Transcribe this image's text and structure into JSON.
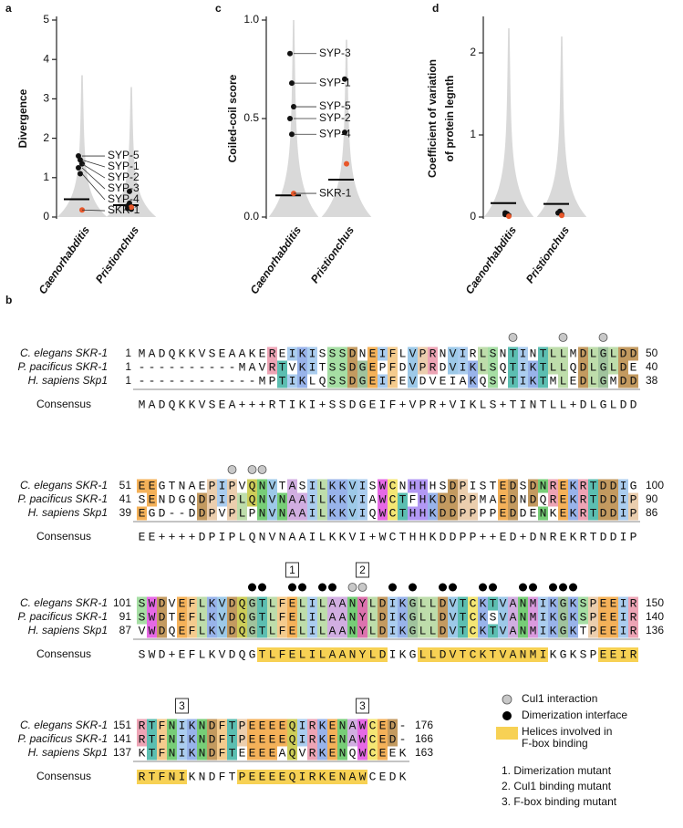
{
  "chart_data": [
    {
      "type": "strip",
      "panel": "a",
      "ylabel": [
        "Divergence"
      ],
      "categories": [
        "Caenorhabditis",
        "Pristionchus"
      ],
      "ylim": [
        0,
        5
      ],
      "yticks": [
        0,
        1,
        2,
        3,
        4,
        5
      ],
      "violin_max": [
        3.6,
        3.3
      ],
      "violin_color": "#cccccc",
      "medians": [
        0.45,
        0.3
      ],
      "series": [
        {
          "name": "SYP-5",
          "color": "#111111",
          "values": [
            1.55,
            0.22
          ]
        },
        {
          "name": "SYP-1",
          "color": "#111111",
          "values": [
            1.45,
            0.65
          ]
        },
        {
          "name": "SYP-2",
          "color": "#111111",
          "values": [
            1.35,
            0.2
          ]
        },
        {
          "name": "SYP-3",
          "color": "#111111",
          "values": [
            1.25,
            0.28
          ]
        },
        {
          "name": "SYP-4",
          "color": "#111111",
          "values": [
            1.1,
            0.35
          ]
        },
        {
          "name": "SKR-1",
          "color": "#e8572a",
          "values": [
            0.18,
            0.25
          ]
        }
      ]
    },
    {
      "type": "strip",
      "panel": "c",
      "ylabel": [
        "Coiled-coil score"
      ],
      "categories": [
        "Caenorhabditis",
        "Pristionchus"
      ],
      "ylim": [
        0,
        1
      ],
      "yticks": [
        {
          "value": 0,
          "label": "0.0"
        },
        {
          "value": 0.5,
          "label": "0.5"
        },
        {
          "value": 1,
          "label": "1.0"
        }
      ],
      "violin_max": [
        1.0,
        0.9
      ],
      "violin_color": "#cccccc",
      "medians": [
        0.11,
        0.19
      ],
      "series": [
        {
          "name": "SYP-3",
          "color": "#111111",
          "values": [
            0.83,
            null
          ]
        },
        {
          "name": "SYP-1",
          "color": "#111111",
          "values": [
            0.68,
            0.7
          ]
        },
        {
          "name": "SYP-5",
          "color": "#111111",
          "values": [
            0.56,
            null
          ]
        },
        {
          "name": "SYP-2",
          "color": "#111111",
          "values": [
            0.5,
            null
          ]
        },
        {
          "name": "SYP-4",
          "color": "#111111",
          "values": [
            0.42,
            0.43
          ]
        },
        {
          "name": "SKR-1",
          "color": "#e8572a",
          "values": [
            0.12,
            0.27
          ]
        }
      ]
    },
    {
      "type": "strip",
      "panel": "d",
      "ylabel": [
        "Coefficient of variation",
        "of protein legnth"
      ],
      "categories": [
        "Caenorhabditis",
        "Pristionchus"
      ],
      "ylim": [
        0,
        2.4
      ],
      "yticks": [
        0,
        1,
        2
      ],
      "violin_max": [
        2.3,
        2.2
      ],
      "violin_color": "#cccccc",
      "medians": [
        0.17,
        0.16
      ],
      "series": [
        {
          "color": "#111111",
          "values": [
            0.03,
            0.05
          ]
        },
        {
          "color": "#111111",
          "values": [
            0.04,
            0.07
          ]
        },
        {
          "color": "#111111",
          "values": [
            0.02,
            0.03
          ]
        },
        {
          "color": "#111111",
          "values": [
            0.05,
            null
          ]
        },
        {
          "color": "#111111",
          "values": [
            0.03,
            null
          ]
        },
        {
          "color": "#e8572a",
          "values": [
            0.01,
            0.02
          ]
        }
      ]
    }
  ],
  "alignment": {
    "panel": "b",
    "consensus_label": "Consensus",
    "blocks": [
      {
        "rows": [
          {
            "name": "C. elegans SKR-1",
            "start": 1,
            "seq": "MADQKKVSEAAKEREIKISSSDNEIFLVPRNVIRLSNTINTLLMDLGLDD",
            "end": 50
          },
          {
            "name": "P. pacificus SKR-1",
            "start": 1,
            "seq": "----------MAVRTVKITSSDGEPFDVPRDVIKLSQTIKTLLQDLGLDE",
            "end": 40
          },
          {
            "name": "H. sapiens Skp1",
            "start": 1,
            "seq": "------------MPTIKLQSSDGEIFEVDVEIAKQSVTIKTMLEDLGMDD",
            "end": 38
          }
        ],
        "consensus": "MADQKKVSEA+++RTIKI+SSDGEIF+VPR+VIKLS+TINTLL+DLGLDD",
        "helices": [],
        "cul1_sites": [
          37,
          42,
          46
        ],
        "dimer_sites": [],
        "boxes": []
      },
      {
        "rows": [
          {
            "name": "C. elegans SKR-1",
            "start": 51,
            "seq": "EEGTNAEPIPVQNVTASILKKVISWCNHHHSDPISTEDSDNREKRTDDIG",
            "end": 100
          },
          {
            "name": "P. pacificus SKR-1",
            "start": 41,
            "seq": "SENDGQDPIPLQNVNAAILKKVIAWCTFHKDDPPMAEDNDQREKRTDDIP",
            "end": 90
          },
          {
            "name": "H. sapiens Skp1",
            "start": 39,
            "seq": "EGD--DDPVPLPNVNAAILKKVIQWCTHHKDDPPPPEDDENKEKRTDDIP",
            "end": 86
          }
        ],
        "consensus": "EE++++DPIPLQNVNAAILKKVI+WCTHHKDDPP++ED+DNREKRTDDIP",
        "helices": [],
        "cul1_sites": [
          9,
          11,
          12
        ],
        "dimer_sites": [],
        "boxes": []
      },
      {
        "rows": [
          {
            "name": "C. elegans SKR-1",
            "start": 101,
            "seq": "SWDVEFLKVDQGTLFELILAANYLDIKGLLDVTCKTVANMIKGKSPEEIR",
            "end": 150
          },
          {
            "name": "P. pacificus SKR-1",
            "start": 91,
            "seq": "SWDTEFLKVDQGTLFELILAANYLDIKGLLDVTCKSVANMIKGKSPEEIR",
            "end": 140
          },
          {
            "name": "H. sapiens Skp1",
            "start": 87,
            "seq": "VWDQEFLKVDQGTLFELILAANYLDIKGLLDVTCKTVANMIKGKTPEEIR",
            "end": 136
          }
        ],
        "consensus": "SWD+EFLKVDQGTLFELILAANYLDIKGLLDVTCKTVANMIKGKSPEEIR",
        "helices": [
          [
            12,
            24
          ],
          [
            28,
            40
          ],
          [
            46,
            49
          ]
        ],
        "cul1_sites": [
          21,
          22
        ],
        "dimer_sites": [
          11,
          12,
          15,
          16,
          18,
          19,
          25,
          27,
          30,
          31,
          34,
          35,
          38,
          39,
          41,
          42,
          43
        ],
        "boxes": [
          {
            "label": "1",
            "col": 15
          },
          {
            "label": "2",
            "col": 22
          }
        ]
      },
      {
        "rows": [
          {
            "name": "C. elegans SKR-1",
            "start": 151,
            "seq": "RTFNIKNDFTPEEEEQIRKENAWCED-",
            "end": 176
          },
          {
            "name": "P. pacificus SKR-1",
            "start": 141,
            "seq": "RTFNIKNDFTPEEEEQIRKENAWCED-",
            "end": 166
          },
          {
            "name": "H. sapiens Skp1",
            "start": 137,
            "seq": "KTFNIKNDFTEEEEAQVRKENQWCEEK",
            "end": 163
          }
        ],
        "consensus": "RTFNIKNDFTPEEEEQIRKENAWCEDK",
        "helices": [
          [
            0,
            4
          ],
          [
            10,
            22
          ]
        ],
        "cul1_sites": [],
        "dimer_sites": [],
        "boxes": [
          {
            "label": "3",
            "col": 4
          },
          {
            "label": "3",
            "col": 22
          }
        ]
      }
    ],
    "legend": {
      "cul1": "Cul1 interaction",
      "dimer": "Dimerization interface",
      "helices": [
        "Helices involved in",
        "F-box binding"
      ],
      "mutants": [
        "1. Dimerization mutant",
        "2. Cul1 binding mutant",
        "3. F-box binding mutant"
      ]
    }
  }
}
